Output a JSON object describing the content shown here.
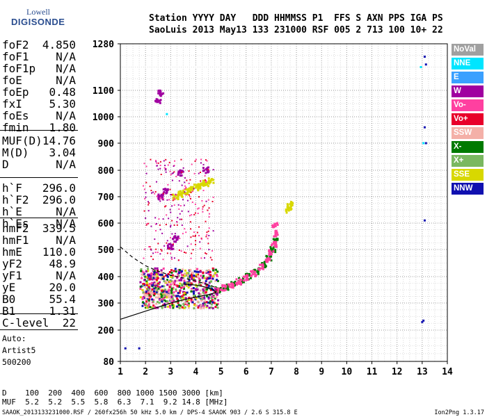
{
  "logo": {
    "line1": "Lowell",
    "line2": "DIGISONDE"
  },
  "header": {
    "columns": "Station YYYY DAY   DDD HHMMSS P1  FFS S AXN PPS IGA PS",
    "values": "SaoLuis 2013 May13 133 231000 RSF 005 2 713 100 10+ 22"
  },
  "params_group1": [
    {
      "label": "foF2",
      "value": "4.850"
    },
    {
      "label": "foF1",
      "value": "N/A"
    },
    {
      "label": "foF1p",
      "value": "N/A"
    },
    {
      "label": "foE",
      "value": "N/A"
    },
    {
      "label": "foEp",
      "value": "0.48"
    },
    {
      "label": "fxI",
      "value": "5.30"
    },
    {
      "label": "foEs",
      "value": "N/A"
    },
    {
      "label": "fmin",
      "value": "1.80"
    }
  ],
  "params_group2": [
    {
      "label": "MUF(D)",
      "value": "14.76"
    },
    {
      "label": "M(D)",
      "value": "3.04"
    },
    {
      "label": "D",
      "value": "N/A"
    }
  ],
  "params_group3": [
    {
      "label": "h`F",
      "value": "296.0"
    },
    {
      "label": "h`F2",
      "value": "296.0"
    },
    {
      "label": "h`E",
      "value": "N/A"
    },
    {
      "label": "h`Es",
      "value": "N/A"
    }
  ],
  "params_group4": [
    {
      "label": "hmF2",
      "value": "339.5"
    },
    {
      "label": "hmF1",
      "value": "N/A"
    },
    {
      "label": "hmE",
      "value": "110.0"
    },
    {
      "label": "yF2",
      "value": "48.9"
    },
    {
      "label": "yF1",
      "value": "N/A"
    },
    {
      "label": "yE",
      "value": "20.0"
    },
    {
      "label": "B0",
      "value": "55.4"
    },
    {
      "label": "B1",
      "value": "1.31"
    }
  ],
  "params_group5": [
    {
      "label": "C-level",
      "value": "22"
    }
  ],
  "auto": {
    "line1": "Auto:",
    "line2": "Artist5",
    "line3": "500200"
  },
  "legend": [
    {
      "name": "NoVal",
      "color": "#a0a0a0"
    },
    {
      "name": "NNE",
      "color": "#00e5ff"
    },
    {
      "name": "E",
      "color": "#3aa0ff"
    },
    {
      "name": "W",
      "color": "#a000a0"
    },
    {
      "name": "Vo-",
      "color": "#ff40a0"
    },
    {
      "name": "Vo+",
      "color": "#e8002a"
    },
    {
      "name": "SSW",
      "color": "#f4b0a8"
    },
    {
      "name": "X-",
      "color": "#007a00"
    },
    {
      "name": "X+",
      "color": "#7ab860"
    },
    {
      "name": "SSE",
      "color": "#d8d800"
    },
    {
      "name": "NNW",
      "color": "#1010b0"
    }
  ],
  "bottom_table": {
    "d_row": "D    100  200  400  600  800 1000 1500 3000 [km]",
    "muf_row": "MUF  5.2  5.2  5.5  5.8  6.3  7.1  9.2 14.8 [MHz]"
  },
  "footer": {
    "left": "SAAOK_2013133231000.RSF / 260fx256h 50 kHz 5.0 km / DPS-4 SAAOK 903 / 2.6 S 315.8 E",
    "right": "Ion2Png 1.3.17"
  },
  "chart_data": {
    "type": "scatter",
    "title": "",
    "xlabel": "",
    "ylabel": "",
    "xlim": [
      1,
      14
    ],
    "ylim": [
      80,
      1280
    ],
    "xticks": [
      1,
      2,
      3,
      4,
      5,
      6,
      7,
      8,
      9,
      10,
      11,
      12,
      13,
      14
    ],
    "yticks": [
      80,
      200,
      300,
      400,
      500,
      600,
      700,
      800,
      900,
      1000,
      1100,
      1280
    ],
    "grid": true,
    "legend_position": "right",
    "series": [
      {
        "name": "X-",
        "points": [
          [
            4.9,
            350
          ],
          [
            5.2,
            360
          ],
          [
            5.5,
            372
          ],
          [
            5.8,
            385
          ],
          [
            6.1,
            400
          ],
          [
            6.4,
            420
          ],
          [
            6.7,
            445
          ],
          [
            6.9,
            470
          ],
          [
            7.05,
            500
          ],
          [
            7.15,
            530
          ]
        ]
      },
      {
        "name": "Vo-",
        "points": [
          [
            4.8,
            348
          ],
          [
            5.1,
            358
          ],
          [
            5.4,
            368
          ],
          [
            5.7,
            380
          ],
          [
            6.0,
            395
          ],
          [
            6.3,
            412
          ],
          [
            6.6,
            435
          ],
          [
            6.85,
            460
          ],
          [
            7.0,
            490
          ],
          [
            7.1,
            520
          ],
          [
            7.15,
            560
          ],
          [
            7.15,
            590
          ]
        ]
      },
      {
        "name": "SSE",
        "points": [
          [
            3.2,
            700
          ],
          [
            3.4,
            710
          ],
          [
            3.6,
            720
          ],
          [
            3.8,
            728
          ],
          [
            4.0,
            735
          ],
          [
            4.2,
            742
          ],
          [
            4.4,
            750
          ],
          [
            4.6,
            760
          ],
          [
            7.7,
            650
          ],
          [
            7.75,
            670
          ]
        ]
      },
      {
        "name": "W",
        "points": [
          [
            2.2,
            400
          ],
          [
            2.4,
            420
          ],
          [
            2.6,
            700
          ],
          [
            2.8,
            720
          ],
          [
            3.0,
            510
          ],
          [
            3.2,
            540
          ],
          [
            3.4,
            790
          ],
          [
            4.4,
            800
          ],
          [
            2.5,
            1060
          ],
          [
            2.6,
            1090
          ]
        ]
      },
      {
        "name": "NNW",
        "points": [
          [
            13.1,
            1230
          ],
          [
            13.15,
            1200
          ],
          [
            13.1,
            960
          ],
          [
            13.15,
            900
          ],
          [
            13.1,
            610
          ],
          [
            13.05,
            235
          ],
          [
            13.0,
            230
          ],
          [
            1.75,
            130
          ],
          [
            1.2,
            130
          ]
        ]
      },
      {
        "name": "NNE",
        "points": [
          [
            2.85,
            1010
          ],
          [
            12.95,
            1190
          ],
          [
            13.05,
            900
          ]
        ]
      },
      {
        "name": "SSW",
        "points": [
          [
            2.0,
            330
          ],
          [
            2.2,
            340
          ],
          [
            2.4,
            345
          ],
          [
            2.6,
            325
          ],
          [
            2.8,
            340
          ],
          [
            3.0,
            330
          ]
        ]
      }
    ],
    "profile_solid": [
      [
        1.0,
        240
      ],
      [
        1.5,
        255
      ],
      [
        2.0,
        270
      ],
      [
        2.5,
        285
      ],
      [
        3.0,
        300
      ],
      [
        3.5,
        312
      ],
      [
        4.0,
        322
      ],
      [
        4.5,
        332
      ],
      [
        4.8,
        339.5
      ],
      [
        4.7,
        350
      ],
      [
        4.4,
        360
      ],
      [
        4.0,
        368
      ],
      [
        3.5,
        372
      ]
    ],
    "profile_dashed": [
      [
        1.0,
        510
      ],
      [
        1.5,
        470
      ],
      [
        2.0,
        440
      ],
      [
        2.5,
        420
      ],
      [
        3.0,
        405
      ],
      [
        3.5,
        395
      ],
      [
        4.0,
        383
      ],
      [
        4.5,
        370
      ],
      [
        4.8,
        358
      ]
    ]
  }
}
